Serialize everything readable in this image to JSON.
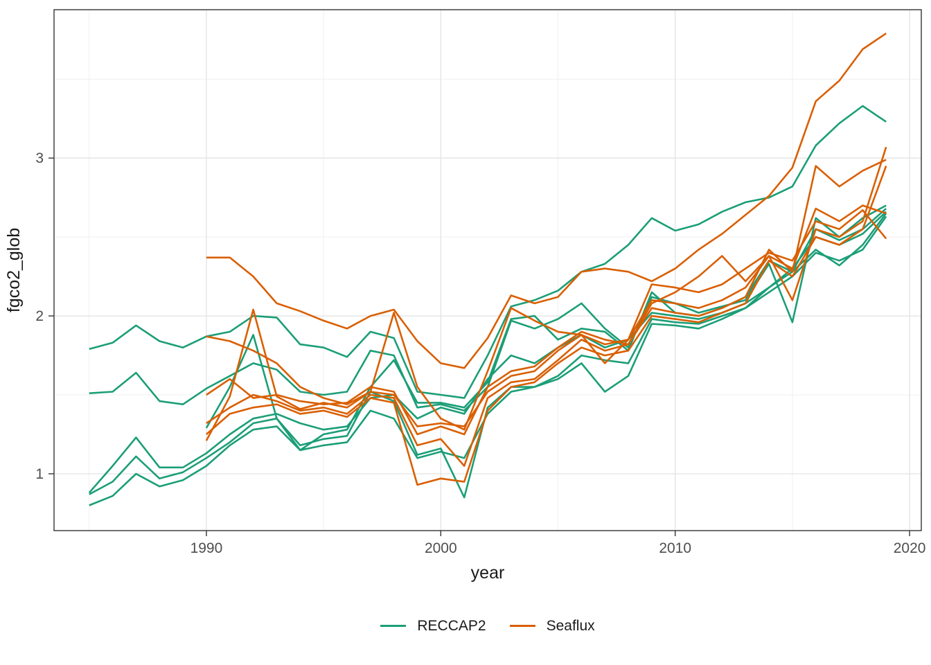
{
  "chart_data": {
    "type": "line",
    "title": "",
    "xlabel": "year",
    "ylabel": "fgco2_glob",
    "x_ticks": [
      1990,
      2000,
      2010,
      2020
    ],
    "x_minor_ticks": [
      1985,
      1995,
      2005,
      2015
    ],
    "y_ticks": [
      1,
      2,
      3
    ],
    "y_minor_ticks": [
      1.5,
      2.5,
      3.5
    ],
    "xlim": [
      1983.5,
      2020.5
    ],
    "ylim": [
      0.64,
      3.94
    ],
    "grid": true,
    "legend_position": "bottom",
    "panel_border_color": "#333333",
    "major_grid_color": "#e3e3e3",
    "minor_grid_color": "#efefef",
    "tick_color": "#333333",
    "tick_label_color": "#4d4d4d",
    "axis_title_color": "#1a1a1a",
    "groups": [
      {
        "name": "RECCAP2",
        "color": "#1B9E77"
      },
      {
        "name": "Seaflux",
        "color": "#D95F02"
      }
    ],
    "years": [
      1985,
      1986,
      1987,
      1988,
      1989,
      1990,
      1991,
      1992,
      1993,
      1994,
      1995,
      1996,
      1997,
      1998,
      1999,
      2000,
      2001,
      2002,
      2003,
      2004,
      2005,
      2006,
      2007,
      2008,
      2009,
      2010,
      2011,
      2012,
      2013,
      2014,
      2015,
      2016,
      2017,
      2018,
      2019
    ],
    "series": [
      {
        "id": "reccap2-line-1",
        "group": "RECCAP2",
        "values": [
          1.79,
          1.83,
          1.94,
          1.84,
          1.8,
          1.87,
          1.9,
          2.0,
          1.99,
          1.82,
          1.8,
          1.74,
          1.9,
          1.86,
          1.52,
          1.5,
          1.48,
          1.75,
          2.06,
          2.1,
          2.16,
          2.28,
          2.33,
          2.45,
          2.62,
          2.54,
          2.58,
          2.66,
          2.72,
          2.75,
          2.82,
          3.08,
          3.22,
          3.33,
          3.23
        ]
      },
      {
        "id": "reccap2-line-2",
        "group": "RECCAP2",
        "values": [
          1.51,
          1.52,
          1.64,
          1.46,
          1.44,
          1.54,
          1.62,
          1.7,
          1.66,
          1.52,
          1.5,
          1.52,
          1.78,
          1.75,
          1.42,
          1.44,
          1.4,
          1.55,
          1.97,
          1.92,
          1.98,
          2.08,
          1.92,
          1.8,
          2.12,
          2.08,
          2.02,
          2.06,
          2.1,
          2.33,
          1.96,
          2.62,
          2.5,
          2.62,
          2.7
        ]
      },
      {
        "id": "reccap2-line-3",
        "group": "RECCAP2",
        "values": [
          0.88,
          1.05,
          1.23,
          1.04,
          1.04,
          1.13,
          1.25,
          1.35,
          1.38,
          1.32,
          1.28,
          1.3,
          1.48,
          1.5,
          1.35,
          1.42,
          1.38,
          1.6,
          1.75,
          1.7,
          1.8,
          1.88,
          1.8,
          1.85,
          2.02,
          2.0,
          1.98,
          2.02,
          2.08,
          2.18,
          2.3,
          2.5,
          2.45,
          2.52,
          2.66
        ]
      },
      {
        "id": "reccap2-line-4",
        "group": "RECCAP2",
        "values": [
          0.87,
          0.95,
          1.11,
          0.97,
          1.01,
          1.1,
          1.2,
          1.32,
          1.35,
          1.18,
          1.22,
          1.24,
          1.52,
          1.46,
          1.12,
          1.16,
          0.85,
          1.42,
          1.55,
          1.55,
          1.62,
          1.75,
          1.72,
          1.7,
          1.98,
          1.96,
          1.95,
          2.0,
          2.05,
          2.18,
          2.28,
          2.42,
          2.32,
          2.45,
          2.65
        ]
      },
      {
        "id": "reccap2-line-5",
        "group": "RECCAP2",
        "values": [
          0.8,
          0.86,
          1.0,
          0.92,
          0.96,
          1.05,
          1.18,
          1.28,
          1.3,
          1.15,
          1.18,
          1.2,
          1.4,
          1.35,
          1.1,
          1.14,
          1.1,
          1.38,
          1.52,
          1.55,
          1.6,
          1.7,
          1.52,
          1.62,
          1.95,
          1.94,
          1.92,
          1.98,
          2.05,
          2.15,
          2.25,
          2.4,
          2.35,
          2.42,
          2.63
        ]
      },
      {
        "id": "reccap2-line-6",
        "group": "RECCAP2",
        "values": [
          null,
          null,
          null,
          null,
          null,
          1.29,
          1.55,
          1.88,
          1.35,
          1.15,
          1.25,
          1.28,
          1.55,
          1.72,
          1.45,
          1.45,
          1.42,
          1.58,
          1.98,
          2.0,
          1.85,
          1.92,
          1.9,
          1.78,
          2.15,
          2.02,
          2.0,
          2.05,
          2.12,
          2.35,
          2.28,
          2.55,
          2.48,
          2.55,
          2.68
        ]
      },
      {
        "id": "seaflux-line-1",
        "group": "Seaflux",
        "values": [
          null,
          null,
          null,
          null,
          null,
          2.37,
          2.37,
          2.25,
          2.08,
          2.03,
          1.97,
          1.92,
          2.0,
          2.04,
          1.84,
          1.7,
          1.67,
          1.86,
          2.13,
          2.08,
          2.12,
          2.28,
          2.3,
          2.28,
          2.22,
          2.3,
          2.42,
          2.52,
          2.64,
          2.76,
          2.94,
          3.36,
          3.49,
          3.69,
          3.79
        ]
      },
      {
        "id": "seaflux-line-2",
        "group": "Seaflux",
        "values": [
          null,
          null,
          null,
          null,
          null,
          1.21,
          1.49,
          2.04,
          1.49,
          1.41,
          1.45,
          1.42,
          1.52,
          2.02,
          1.55,
          1.35,
          1.28,
          1.65,
          2.05,
          1.97,
          1.9,
          1.88,
          1.7,
          1.85,
          2.2,
          2.18,
          2.15,
          2.2,
          2.3,
          2.4,
          2.35,
          2.6,
          2.55,
          2.67,
          2.49
        ]
      },
      {
        "id": "seaflux-line-3",
        "group": "Seaflux",
        "values": [
          null,
          null,
          null,
          null,
          null,
          1.5,
          1.6,
          1.48,
          1.5,
          1.46,
          1.44,
          1.45,
          1.55,
          1.52,
          1.25,
          1.3,
          1.25,
          1.55,
          1.65,
          1.68,
          1.8,
          1.9,
          1.85,
          1.82,
          2.08,
          2.15,
          2.25,
          2.38,
          2.22,
          2.38,
          2.1,
          2.55,
          2.5,
          2.6,
          3.07
        ]
      },
      {
        "id": "seaflux-line-4",
        "group": "Seaflux",
        "values": [
          null,
          null,
          null,
          null,
          null,
          1.32,
          1.42,
          1.5,
          1.46,
          1.4,
          1.42,
          1.38,
          1.5,
          1.48,
          1.18,
          1.22,
          1.05,
          1.48,
          1.58,
          1.6,
          1.72,
          1.85,
          1.78,
          1.82,
          2.05,
          2.02,
          2.0,
          2.05,
          2.12,
          2.42,
          2.28,
          2.95,
          2.82,
          2.92,
          2.99
        ]
      },
      {
        "id": "seaflux-line-5",
        "group": "Seaflux",
        "values": [
          null,
          null,
          null,
          null,
          null,
          1.25,
          1.38,
          1.42,
          1.44,
          1.38,
          1.4,
          1.36,
          1.48,
          1.45,
          0.93,
          0.97,
          0.95,
          1.4,
          1.55,
          1.58,
          1.7,
          1.8,
          1.75,
          1.78,
          2.0,
          1.98,
          1.96,
          2.02,
          2.08,
          2.35,
          2.25,
          2.5,
          2.45,
          2.55,
          2.95
        ]
      },
      {
        "id": "seaflux-line-6",
        "group": "Seaflux",
        "values": [
          null,
          null,
          null,
          null,
          null,
          1.87,
          1.84,
          1.78,
          1.7,
          1.55,
          1.48,
          1.44,
          1.52,
          1.5,
          1.3,
          1.32,
          1.3,
          1.52,
          1.62,
          1.65,
          1.78,
          1.88,
          1.82,
          1.85,
          2.1,
          2.08,
          2.05,
          2.1,
          2.18,
          2.38,
          2.3,
          2.68,
          2.6,
          2.7,
          2.65
        ]
      }
    ]
  },
  "legend": {
    "items": [
      {
        "label": "RECCAP2",
        "color": "#1B9E77"
      },
      {
        "label": "Seaflux",
        "color": "#D95F02"
      }
    ]
  }
}
